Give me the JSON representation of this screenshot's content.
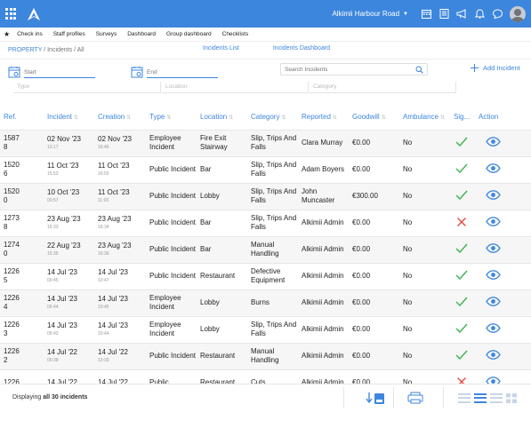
{
  "topbar": {
    "venue": "Alkimii Harbour Road",
    "icons": [
      "calendar-icon",
      "book-icon",
      "megaphone-icon",
      "bell-icon",
      "chat-icon",
      "avatar"
    ]
  },
  "nav": {
    "items": [
      "Check ins",
      "Staff profiles",
      "Surveys",
      "Dashboard",
      "Group dashboard",
      "Checklists"
    ]
  },
  "breadcrumb": {
    "root": "PROPERTY",
    "sep1": " / ",
    "section": "Incidents",
    "sep2": " / ",
    "current": "All"
  },
  "view_tabs": {
    "list": "Incidents List",
    "dashboard": "Incidents Dashboard"
  },
  "filters": {
    "start_placeholder": "Start",
    "end_placeholder": "End",
    "search_placeholder": "Search Incidents",
    "add_label": "Add Incident",
    "type_placeholder": "Type",
    "location_placeholder": "Location",
    "category_placeholder": "Category"
  },
  "table": {
    "columns": [
      "Ref.",
      "Incident",
      "Creation",
      "Type",
      "Location",
      "Category",
      "Reported",
      "Goodwill",
      "Ambulance",
      "Sig...",
      "Action"
    ],
    "rows": [
      {
        "ref": "1587\n8",
        "incident_date": "02 Nov '23",
        "incident_time": "13:17",
        "creation_date": "02 Nov '23",
        "creation_time": "16:46",
        "type": "Employee Incident",
        "location": "Fire Exit Stairway",
        "category": "Slip, Trips And Falls",
        "reported": "Clara Murray",
        "goodwill": "€0.00",
        "ambulance": "No",
        "signed": "check"
      },
      {
        "ref": "1520\n6",
        "incident_date": "11 Oct '23",
        "incident_time": "15:53",
        "creation_date": "11 Oct '23",
        "creation_time": "16:55",
        "type": "Public Incident",
        "location": "Bar",
        "category": "Slip, Trips And Falls",
        "reported": "Adam Boyers",
        "goodwill": "€0.00",
        "ambulance": "No",
        "signed": "check"
      },
      {
        "ref": "1520\n0",
        "incident_date": "10 Oct '23",
        "incident_time": "09:57",
        "creation_date": "11 Oct '23",
        "creation_time": "11:03",
        "type": "Public Incident",
        "location": "Lobby",
        "category": "Slip, Trips And Falls",
        "reported": "John Muncaster",
        "goodwill": "€300.00",
        "ambulance": "No",
        "signed": "check"
      },
      {
        "ref": "1273\n8",
        "incident_date": "23 Aug '23",
        "incident_time": "15:33",
        "creation_date": "23 Aug '23",
        "creation_time": "16:34",
        "type": "Public Incident",
        "location": "Bar",
        "category": "Slip, Trips And Falls",
        "reported": "Alkimii Admin",
        "goodwill": "€0.00",
        "ambulance": "No",
        "signed": "cross"
      },
      {
        "ref": "1274\n0",
        "incident_date": "22 Aug '23",
        "incident_time": "15:35",
        "creation_date": "23 Aug '23",
        "creation_time": "16:36",
        "type": "Public Incident",
        "location": "Bar",
        "category": "Manual Handling",
        "reported": "Alkimii Admin",
        "goodwill": "€0.00",
        "ambulance": "No",
        "signed": "check"
      },
      {
        "ref": "1226\n5",
        "incident_date": "14 Jul '23",
        "incident_time": "09:45",
        "creation_date": "14 Jul '23",
        "creation_time": "10:47",
        "type": "Public Incident",
        "location": "Restaurant",
        "category": "Defective Equipment",
        "reported": "Alkimii Admin",
        "goodwill": "€0.00",
        "ambulance": "No",
        "signed": "check"
      },
      {
        "ref": "1226\n4",
        "incident_date": "14 Jul '23",
        "incident_time": "09:44",
        "creation_date": "14 Jul '23",
        "creation_time": "10:45",
        "type": "Employee Incident",
        "location": "Lobby",
        "category": "Burns",
        "reported": "Alkimii Admin",
        "goodwill": "€0.00",
        "ambulance": "No",
        "signed": "check"
      },
      {
        "ref": "1226\n3",
        "incident_date": "14 Jul '23",
        "incident_time": "09:43",
        "creation_date": "14 Jul '23",
        "creation_time": "10:44",
        "type": "Employee Incident",
        "location": "Lobby",
        "category": "Slip, Trips And Falls",
        "reported": "Alkimii Admin",
        "goodwill": "€0.00",
        "ambulance": "No",
        "signed": "check"
      },
      {
        "ref": "1226\n2",
        "incident_date": "14 Jul '22",
        "incident_time": "09:38",
        "creation_date": "14 Jul '22",
        "creation_time": "10:39",
        "type": "Public Incident",
        "location": "Restaurant",
        "category": "Manual Handling",
        "reported": "Alkimii Admin",
        "goodwill": "€0.00",
        "ambulance": "No",
        "signed": "check"
      },
      {
        "ref": "1226",
        "incident_date": "14 Jul '22",
        "incident_time": "",
        "creation_date": "14 Jul '22",
        "creation_time": "",
        "type": "Public",
        "location": "Restaurant",
        "category": "Cuts",
        "reported": "Alkimii Admin",
        "goodwill": "€0.00",
        "ambulance": "No",
        "signed": "cross"
      }
    ]
  },
  "footer": {
    "displaying": "Displaying ",
    "count": "all 30 incidents"
  },
  "colors": {
    "brand": "#3d86dd",
    "check": "#3cb34a",
    "cross": "#e0473d"
  }
}
